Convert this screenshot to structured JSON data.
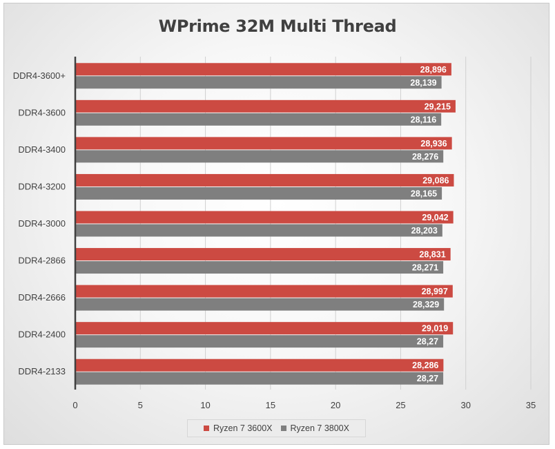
{
  "chart_data": {
    "type": "bar",
    "orientation": "horizontal",
    "title": "WPrime 32M Multi Thread",
    "xlabel": "",
    "ylabel": "",
    "xlim": [
      0,
      35
    ],
    "x_ticks": [
      0,
      5,
      10,
      15,
      20,
      25,
      30,
      35
    ],
    "grid": true,
    "legend_position": "bottom",
    "categories": [
      "DDR4-3600+",
      "DDR4-3600",
      "DDR4-3400",
      "DDR4-3200",
      "DDR4-3000",
      "DDR4-2866",
      "DDR4-2666",
      "DDR4-2400",
      "DDR4-2133"
    ],
    "series": [
      {
        "name": "Ryzen 7 3600X",
        "color": "#cc4a42",
        "values": [
          28.896,
          29.215,
          28.936,
          29.086,
          29.042,
          28.831,
          28.997,
          29.019,
          28.286
        ],
        "labels": [
          "28,896",
          "29,215",
          "28,936",
          "29,086",
          "29,042",
          "28,831",
          "28,997",
          "29,019",
          "28,286"
        ]
      },
      {
        "name": "Ryzen 7 3800X",
        "color": "#7f7f7f",
        "values": [
          28.139,
          28.116,
          28.276,
          28.165,
          28.203,
          28.271,
          28.329,
          28.27,
          28.27
        ],
        "labels": [
          "28,139",
          "28,116",
          "28,276",
          "28,165",
          "28,203",
          "28,271",
          "28,329",
          "28,27",
          "28,27"
        ]
      }
    ]
  }
}
